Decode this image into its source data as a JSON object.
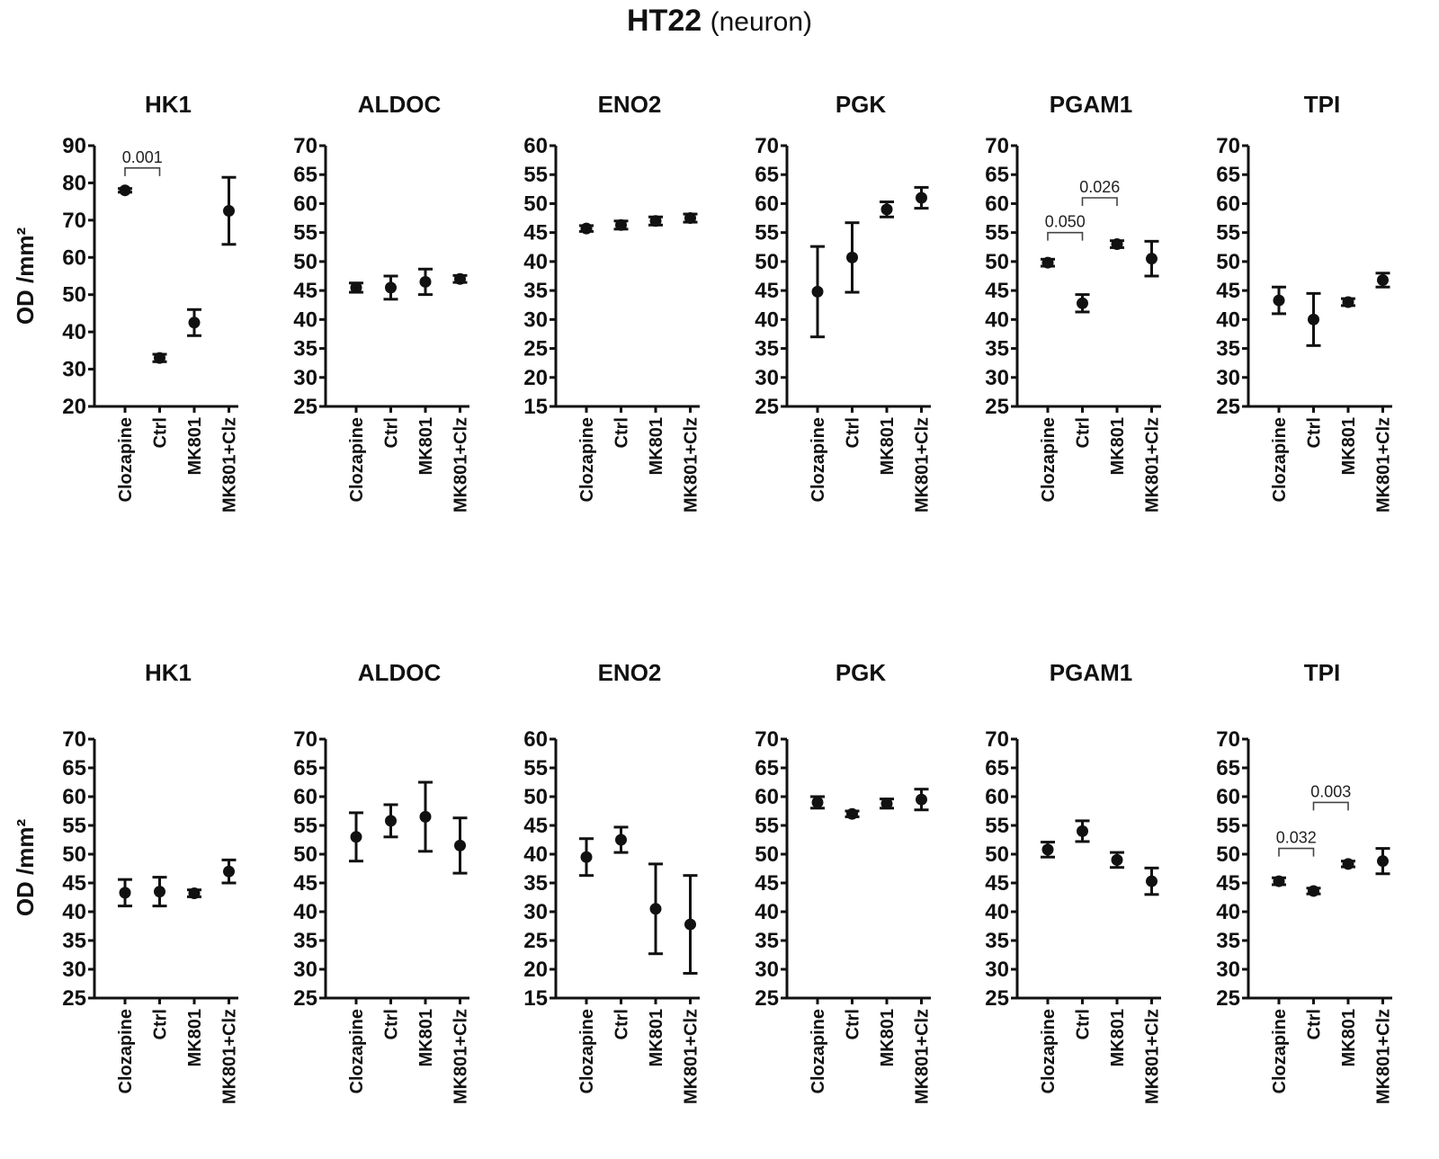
{
  "figure": {
    "title": "HT22",
    "subtitle": "(neuron)"
  },
  "chart_data": [
    {
      "type": "scatter",
      "row": 1,
      "title": "HK1",
      "ylabel": "OD /mm²",
      "ylim": [
        20,
        90
      ],
      "yticks": [
        20,
        30,
        40,
        50,
        60,
        70,
        80,
        90
      ],
      "categories": [
        "Clozapine",
        "Ctrl",
        "MK801",
        "MK801+Clz"
      ],
      "values": [
        78,
        33,
        42.5,
        72.5
      ],
      "errors": [
        0.5,
        1,
        3.5,
        9
      ],
      "annotations": [
        {
          "from": 0,
          "to": 1,
          "label": "0.001",
          "y": 84
        }
      ]
    },
    {
      "type": "scatter",
      "row": 1,
      "title": "ALDOC",
      "ylabel": "",
      "ylim": [
        25,
        70
      ],
      "yticks": [
        25,
        30,
        35,
        40,
        45,
        50,
        55,
        60,
        65,
        70
      ],
      "categories": [
        "Clozapine",
        "Ctrl",
        "MK801",
        "MK801+Clz"
      ],
      "values": [
        45.5,
        45.5,
        46.5,
        47
      ],
      "errors": [
        0.8,
        2,
        2.2,
        0.6
      ],
      "annotations": []
    },
    {
      "type": "scatter",
      "row": 1,
      "title": "ENO2",
      "ylabel": "",
      "ylim": [
        15,
        60
      ],
      "yticks": [
        15,
        20,
        25,
        30,
        35,
        40,
        45,
        50,
        55,
        60
      ],
      "categories": [
        "Clozapine",
        "Ctrl",
        "MK801",
        "MK801+Clz"
      ],
      "values": [
        45.7,
        46.3,
        47,
        47.5
      ],
      "errors": [
        0.5,
        0.7,
        0.7,
        0.7
      ],
      "annotations": []
    },
    {
      "type": "scatter",
      "row": 1,
      "title": "PGK",
      "ylabel": "",
      "ylim": [
        25,
        70
      ],
      "yticks": [
        25,
        30,
        35,
        40,
        45,
        50,
        55,
        60,
        65,
        70
      ],
      "categories": [
        "Clozapine",
        "Ctrl",
        "MK801",
        "MK801+Clz"
      ],
      "values": [
        44.8,
        50.7,
        59,
        61
      ],
      "errors": [
        7.8,
        6,
        1.3,
        1.8
      ],
      "annotations": []
    },
    {
      "type": "scatter",
      "row": 1,
      "title": "PGAM1",
      "ylabel": "",
      "ylim": [
        25,
        70
      ],
      "yticks": [
        25,
        30,
        35,
        40,
        45,
        50,
        55,
        60,
        65,
        70
      ],
      "categories": [
        "Clozapine",
        "Ctrl",
        "MK801",
        "MK801+Clz"
      ],
      "values": [
        49.8,
        42.8,
        53,
        50.5
      ],
      "errors": [
        0.6,
        1.5,
        0.6,
        3
      ],
      "annotations": [
        {
          "from": 0,
          "to": 1,
          "label": "0.050",
          "y": 55
        },
        {
          "from": 1,
          "to": 2,
          "label": "0.026",
          "y": 61
        }
      ]
    },
    {
      "type": "scatter",
      "row": 1,
      "title": "TPI",
      "ylabel": "",
      "ylim": [
        25,
        70
      ],
      "yticks": [
        25,
        30,
        35,
        40,
        45,
        50,
        55,
        60,
        65,
        70
      ],
      "categories": [
        "Clozapine",
        "Ctrl",
        "MK801",
        "MK801+Clz"
      ],
      "values": [
        43.3,
        40,
        43,
        46.8
      ],
      "errors": [
        2.3,
        4.5,
        0.6,
        1.2
      ],
      "annotations": []
    },
    {
      "type": "scatter",
      "row": 2,
      "title": "HK1",
      "ylabel": "OD /mm²",
      "ylim": [
        25,
        70
      ],
      "yticks": [
        25,
        30,
        35,
        40,
        45,
        50,
        55,
        60,
        65,
        70
      ],
      "categories": [
        "Clozapine",
        "Ctrl",
        "MK801",
        "MK801+Clz"
      ],
      "values": [
        43.3,
        43.5,
        43.2,
        47
      ],
      "errors": [
        2.3,
        2.5,
        0.6,
        2
      ],
      "annotations": []
    },
    {
      "type": "scatter",
      "row": 2,
      "title": "ALDOC",
      "ylabel": "",
      "ylim": [
        25,
        70
      ],
      "yticks": [
        25,
        30,
        35,
        40,
        45,
        50,
        55,
        60,
        65,
        70
      ],
      "categories": [
        "Clozapine",
        "Ctrl",
        "MK801",
        "MK801+Clz"
      ],
      "values": [
        53,
        55.8,
        56.5,
        51.5
      ],
      "errors": [
        4.2,
        2.8,
        6,
        4.8
      ],
      "annotations": []
    },
    {
      "type": "scatter",
      "row": 2,
      "title": "ENO2",
      "ylabel": "",
      "ylim": [
        15,
        60
      ],
      "yticks": [
        15,
        20,
        25,
        30,
        35,
        40,
        45,
        50,
        55,
        60
      ],
      "categories": [
        "Clozapine",
        "Ctrl",
        "MK801",
        "MK801+Clz"
      ],
      "values": [
        39.5,
        42.5,
        30.5,
        27.8
      ],
      "errors": [
        3.2,
        2.2,
        7.8,
        8.5
      ],
      "annotations": []
    },
    {
      "type": "scatter",
      "row": 2,
      "title": "PGK",
      "ylabel": "",
      "ylim": [
        25,
        70
      ],
      "yticks": [
        25,
        30,
        35,
        40,
        45,
        50,
        55,
        60,
        65,
        70
      ],
      "categories": [
        "Clozapine",
        "Ctrl",
        "MK801",
        "MK801+Clz"
      ],
      "values": [
        59,
        57,
        58.8,
        59.5
      ],
      "errors": [
        1,
        0.5,
        0.8,
        1.8
      ],
      "annotations": []
    },
    {
      "type": "scatter",
      "row": 2,
      "title": "PGAM1",
      "ylabel": "",
      "ylim": [
        25,
        70
      ],
      "yticks": [
        25,
        30,
        35,
        40,
        45,
        50,
        55,
        60,
        65,
        70
      ],
      "categories": [
        "Clozapine",
        "Ctrl",
        "MK801",
        "MK801+Clz"
      ],
      "values": [
        50.8,
        54,
        49,
        45.3
      ],
      "errors": [
        1.3,
        1.8,
        1.3,
        2.3
      ],
      "annotations": []
    },
    {
      "type": "scatter",
      "row": 2,
      "title": "TPI",
      "ylabel": "",
      "ylim": [
        25,
        70
      ],
      "yticks": [
        25,
        30,
        35,
        40,
        45,
        50,
        55,
        60,
        65,
        70
      ],
      "categories": [
        "Clozapine",
        "Ctrl",
        "MK801",
        "MK801+Clz"
      ],
      "values": [
        45.3,
        43.6,
        48.3,
        48.8
      ],
      "errors": [
        0.6,
        0.5,
        0.5,
        2.2
      ],
      "annotations": [
        {
          "from": 0,
          "to": 1,
          "label": "0.032",
          "y": 51
        },
        {
          "from": 1,
          "to": 2,
          "label": "0.003",
          "y": 59
        }
      ]
    }
  ]
}
